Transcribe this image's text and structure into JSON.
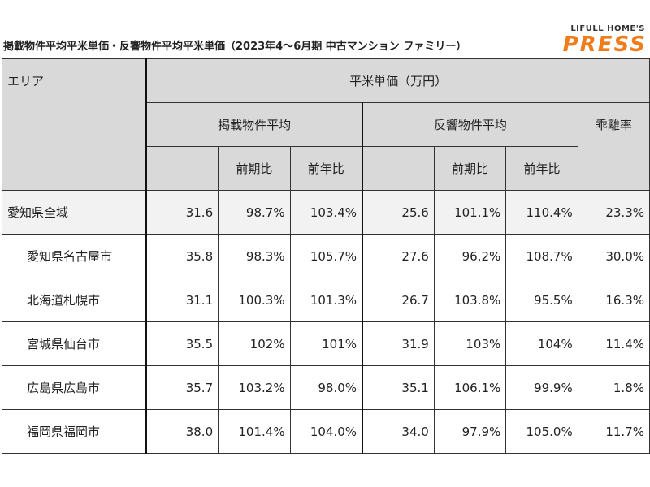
{
  "header": {
    "title": "掲載物件平均平米単価・反響物件平均平米単価（2023年4～6月期 中古マンション ファミリー）",
    "logo_top": "LIFULL HOME'S",
    "logo_main": "PRESS"
  },
  "table": {
    "area_header": "エリア",
    "price_header": "平米単価（万円）",
    "listing_header": "掲載物件平均",
    "response_header": "反響物件平均",
    "gap_header": "乖離率",
    "listing_sub": [
      "前期比",
      "前年比"
    ],
    "response_sub": [
      "前期比",
      "前年比"
    ],
    "rows": [
      [
        "愛知県全域",
        "31.6",
        "98.7%",
        "103.4%",
        "25.6",
        "101.1%",
        "110.4%",
        "23.3%"
      ],
      [
        "愛知県名古屋市",
        "35.8",
        "98.3%",
        "105.7%",
        "27.6",
        "96.2%",
        "108.7%",
        "30.0%"
      ],
      [
        "北海道札幌市",
        "31.1",
        "100.3%",
        "101.3%",
        "26.7",
        "103.8%",
        "95.5%",
        "16.3%"
      ],
      [
        "宮城県仙台市",
        "35.5",
        "102%",
        "101%",
        "31.9",
        "103%",
        "104%",
        "11.4%"
      ],
      [
        "広島県広島市",
        "35.7",
        "103.2%",
        "98.0%",
        "35.1",
        "106.1%",
        "99.9%",
        "1.8%"
      ],
      [
        "福岡県福岡市",
        "38.0",
        "101.4%",
        "104.0%",
        "34.0",
        "97.9%",
        "105.0%",
        "11.7%"
      ]
    ]
  }
}
